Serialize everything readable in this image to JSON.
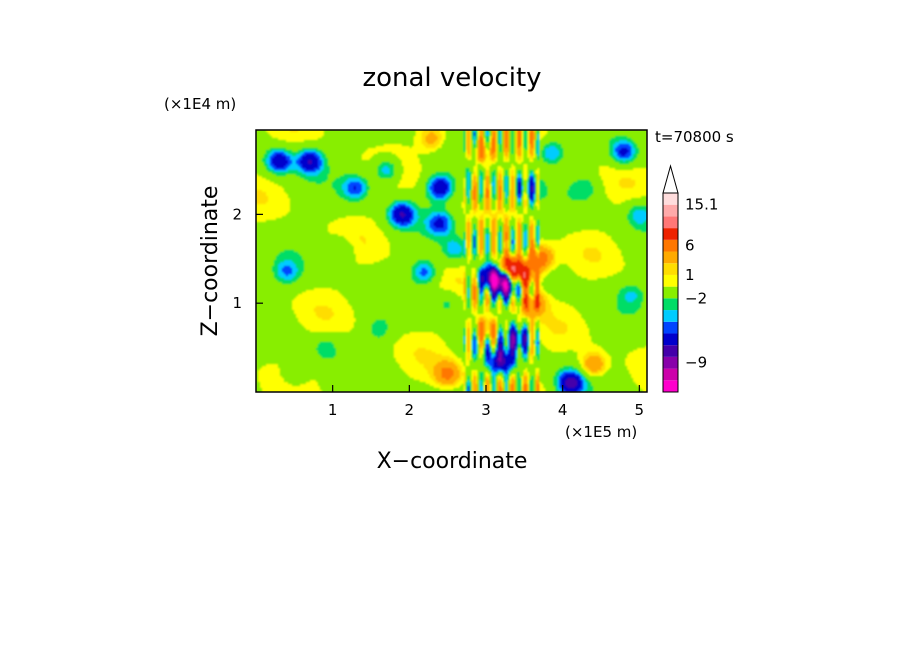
{
  "chart_data": {
    "type": "heatmap",
    "title": "zonal velocity",
    "xlabel": "X−coordinate",
    "ylabel": "Z−coordinate",
    "x_scale_note": "(×1E5 m)",
    "y_scale_note": "(×1E4 m)",
    "time_label": "t=70800 s",
    "xlim": [
      0,
      5.1
    ],
    "ylim": [
      0,
      2.95
    ],
    "x_ticks": [
      {
        "value": 1,
        "label": "1"
      },
      {
        "value": 2,
        "label": "2"
      },
      {
        "value": 3,
        "label": "3"
      },
      {
        "value": 4,
        "label": "4"
      },
      {
        "value": 5,
        "label": "5"
      }
    ],
    "y_ticks": [
      {
        "value": 1,
        "label": "1"
      },
      {
        "value": 2,
        "label": "2"
      }
    ],
    "colorbar": {
      "levels_from_bottom": [
        {
          "color": "#ff00cc"
        },
        {
          "color": "#cc00aa"
        },
        {
          "color": "#8800aa"
        },
        {
          "color": "#4400aa"
        },
        {
          "color": "#0000cc"
        },
        {
          "color": "#0044ff"
        },
        {
          "color": "#00ccff"
        },
        {
          "color": "#00dd66"
        },
        {
          "color": "#88ee00"
        },
        {
          "color": "#ffff00"
        },
        {
          "color": "#ffdd00"
        },
        {
          "color": "#ffaa00"
        },
        {
          "color": "#ff7700"
        },
        {
          "color": "#ee2200"
        },
        {
          "color": "#ff7777"
        },
        {
          "color": "#ffaaaa"
        },
        {
          "color": "#ffdddd"
        }
      ],
      "labels": [
        {
          "text": "15.1",
          "level": 16
        },
        {
          "text": "6",
          "level": 12.5
        },
        {
          "text": "1",
          "level": 10
        },
        {
          "text": "−2",
          "level": 8
        },
        {
          "text": "−9",
          "level": 2.5
        }
      ],
      "top_arrow_color": "#ffffff"
    },
    "field_features": [
      {
        "x": 0.3,
        "z": 2.6,
        "value": -6
      },
      {
        "x": 0.7,
        "z": 2.6,
        "value": -6
      },
      {
        "x": 0.4,
        "z": 1.35,
        "value": -3
      },
      {
        "x": 1.3,
        "z": 2.3,
        "value": -4
      },
      {
        "x": 1.7,
        "z": 2.5,
        "value": -4
      },
      {
        "x": 1.1,
        "z": 1.6,
        "value": -2
      },
      {
        "x": 1.9,
        "z": 2.0,
        "value": -6
      },
      {
        "x": 2.4,
        "z": 2.3,
        "value": -6
      },
      {
        "x": 2.4,
        "z": 1.9,
        "value": -4
      },
      {
        "x": 2.2,
        "z": 1.35,
        "value": -4
      },
      {
        "x": 2.6,
        "z": 1.6,
        "value": -3
      },
      {
        "x": 3.1,
        "z": 1.3,
        "value": -11
      },
      {
        "x": 3.25,
        "z": 1.2,
        "value": -9
      },
      {
        "x": 3.3,
        "z": 1.4,
        "value": 10
      },
      {
        "x": 3.5,
        "z": 1.3,
        "value": 7
      },
      {
        "x": 3.7,
        "z": 1.5,
        "value": 6
      },
      {
        "x": 3.6,
        "z": 1.0,
        "value": 5
      },
      {
        "x": 2.95,
        "z": 2.7,
        "value": 4
      },
      {
        "x": 2.3,
        "z": 2.85,
        "value": 3
      },
      {
        "x": 3.55,
        "z": 2.3,
        "value": -3
      },
      {
        "x": 3.85,
        "z": 2.7,
        "value": -4
      },
      {
        "x": 4.8,
        "z": 2.7,
        "value": -5
      },
      {
        "x": 4.3,
        "z": 2.3,
        "value": -2
      },
      {
        "x": 5.0,
        "z": 2.0,
        "value": -3
      },
      {
        "x": 4.9,
        "z": 1.1,
        "value": -2
      },
      {
        "x": 0.9,
        "z": 0.5,
        "value": -2
      },
      {
        "x": 1.6,
        "z": 0.7,
        "value": -2
      },
      {
        "x": 0.5,
        "z": 0.2,
        "value": -2
      },
      {
        "x": 3.2,
        "z": 0.35,
        "value": -7
      },
      {
        "x": 3.4,
        "z": 0.6,
        "value": -6
      },
      {
        "x": 4.1,
        "z": 0.1,
        "value": -7
      },
      {
        "x": 3.0,
        "z": 0.7,
        "value": 5
      },
      {
        "x": 2.5,
        "z": 0.2,
        "value": 4
      },
      {
        "x": 4.4,
        "z": 0.3,
        "value": 4
      },
      {
        "x": 2.5,
        "z": 1.0,
        "value": -2
      },
      {
        "x": 2.75,
        "z": 0.6,
        "value": -1
      }
    ]
  }
}
